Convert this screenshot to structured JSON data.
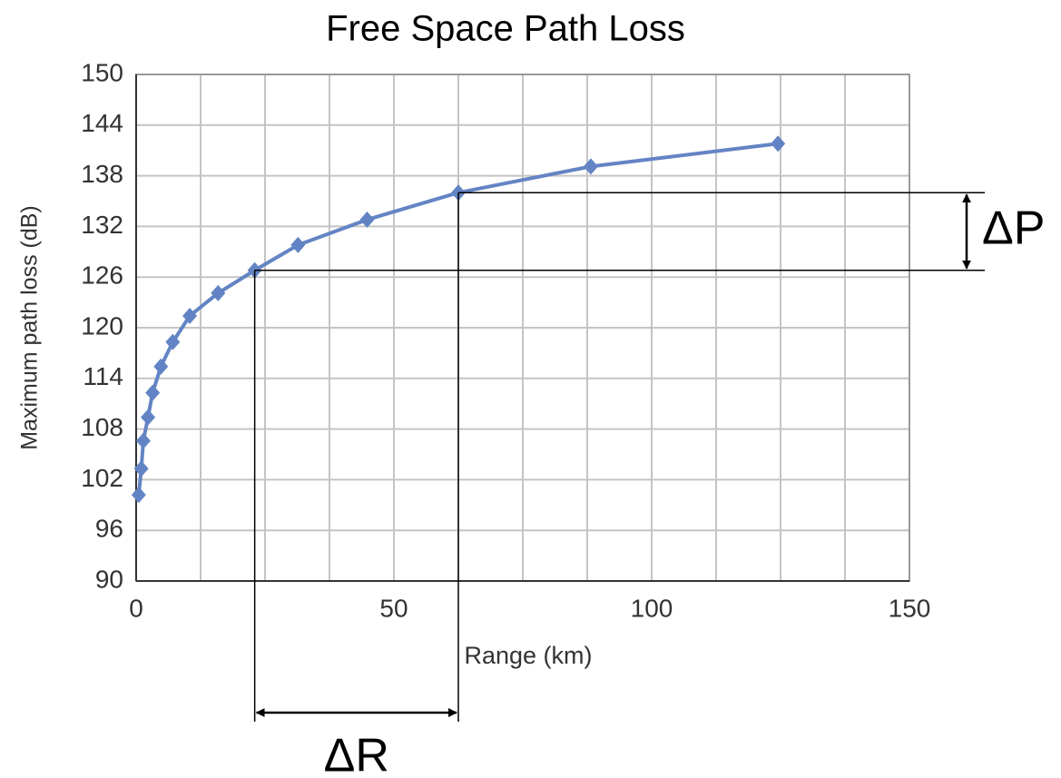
{
  "chart_data": {
    "type": "line",
    "title": "Free Space Path Loss",
    "xlabel": "Range (km)",
    "ylabel": "Maximum path loss (dB)",
    "x": [
      0.5,
      1,
      1.4,
      2.3,
      3.2,
      4.8,
      7.1,
      10.4,
      15.9,
      23,
      31.4,
      44.8,
      62.5,
      88.2,
      124.5
    ],
    "series": [
      {
        "name": "Maximum path loss",
        "color": "#6384c4",
        "values": [
          100.2,
          103.3,
          106.6,
          109.4,
          112.3,
          115.4,
          118.3,
          121.4,
          124.1,
          126.8,
          129.8,
          132.8,
          136,
          139.1,
          141.8
        ]
      }
    ],
    "xlim": [
      0,
      150
    ],
    "xticks": [
      0,
      50,
      100,
      150
    ],
    "xgrid": [
      0,
      12.5,
      25,
      37.5,
      50,
      62.5,
      75,
      87.5,
      100,
      112.5,
      125,
      137.5,
      150
    ],
    "ylim": [
      90,
      150
    ],
    "yticks": [
      90,
      96,
      102,
      108,
      114,
      120,
      126,
      132,
      138,
      144,
      150
    ],
    "grid": true,
    "annotations": [
      "ΔP",
      "ΔR"
    ]
  }
}
